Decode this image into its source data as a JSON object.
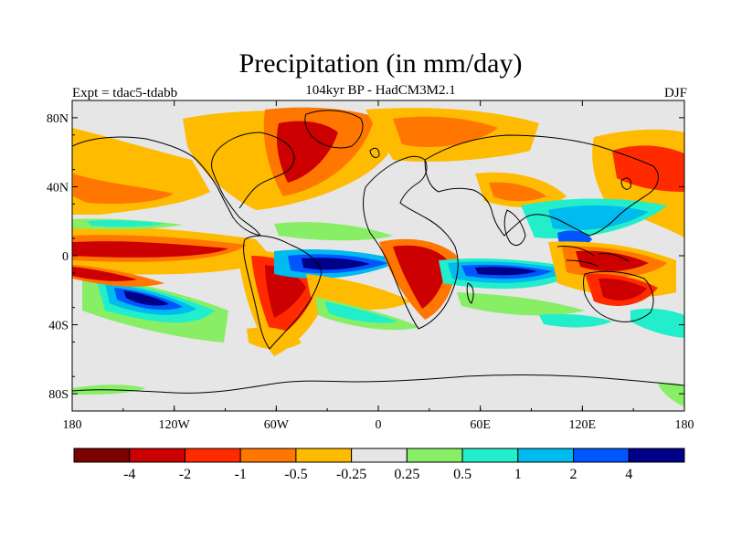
{
  "header": {
    "title": "Precipitation (in mm/day)",
    "subtitle": "104kyr BP - HadCM3M2.1",
    "left_label": "Expt = tdac5-tdabb",
    "right_label": "DJF"
  },
  "map": {
    "type": "filled-contour-map",
    "projection": "cylindrical-equidistant",
    "background_color": "#e6e6e6",
    "lon_ticks": [
      "180",
      "120W",
      "60W",
      "0",
      "60E",
      "120E",
      "180"
    ],
    "lat_ticks": [
      "80N",
      "40N",
      "0",
      "40S",
      "80S"
    ]
  },
  "colorbar": {
    "colors": [
      "#7b0000",
      "#cc0000",
      "#ff2a00",
      "#ff7700",
      "#ffbb00",
      "#e6e6e6",
      "#88ee66",
      "#22eecc",
      "#00bbee",
      "#0055ff",
      "#000088"
    ],
    "labels": [
      "-4",
      "-2",
      "-1",
      "-0.5",
      "-0.25",
      "0.25",
      "0.5",
      "1",
      "2",
      "4"
    ]
  }
}
